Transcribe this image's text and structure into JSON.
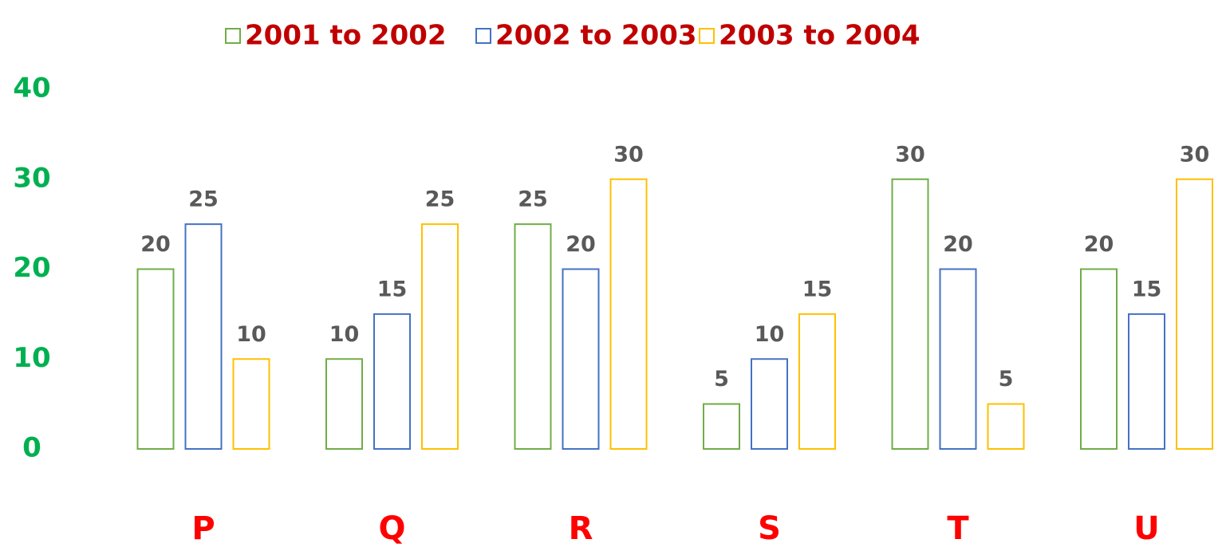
{
  "chart_data": {
    "type": "bar",
    "categories": [
      "P",
      "Q",
      "R",
      "S",
      "T",
      "U"
    ],
    "series": [
      {
        "name": "2001 to 2002",
        "color": "#70ad47",
        "values": [
          20,
          10,
          25,
          5,
          30,
          20
        ]
      },
      {
        "name": "2002 to 2003",
        "color": "#4472c4",
        "values": [
          25,
          15,
          20,
          10,
          20,
          15
        ]
      },
      {
        "name": "2003 to 2004",
        "color": "#ffc000",
        "values": [
          10,
          25,
          30,
          15,
          5,
          30
        ]
      }
    ],
    "ylim": [
      0,
      40
    ],
    "yticks": [
      0,
      10,
      20,
      30,
      40
    ],
    "grid": false
  }
}
